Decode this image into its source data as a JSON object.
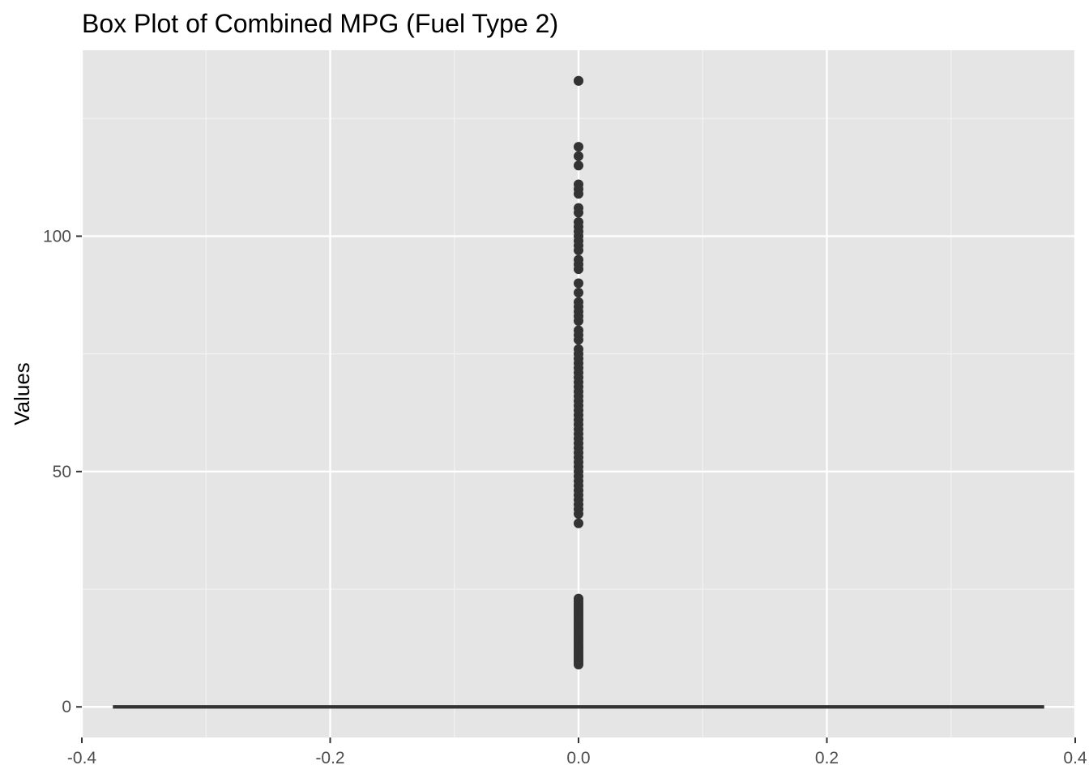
{
  "chart_data": {
    "type": "box",
    "title": "Box Plot of Combined MPG (Fuel Type 2)",
    "xlabel": "",
    "ylabel": "Values",
    "xlim": [
      -0.4,
      0.4
    ],
    "ylim": [
      -6.5,
      139.5
    ],
    "x_ticks": [
      -0.4,
      -0.2,
      0.0,
      0.2,
      0.4
    ],
    "x_tick_labels": [
      "-0.4",
      "-0.2",
      "0.0",
      "0.2",
      "0.4"
    ],
    "y_ticks": [
      0,
      50,
      100
    ],
    "y_tick_labels": [
      "0",
      "50",
      "100"
    ],
    "grid": true,
    "box": {
      "x": 0,
      "width": 0.75,
      "min": 0,
      "q1": 0,
      "median": 0,
      "q3": 0,
      "max": 0
    },
    "outliers": [
      133,
      133,
      119,
      117,
      115,
      111,
      110,
      109,
      106,
      105,
      103,
      102,
      101,
      100,
      99,
      98,
      97,
      95,
      94,
      93,
      90,
      88,
      86,
      85,
      84,
      83,
      82,
      80,
      79,
      78,
      76,
      75,
      74,
      73,
      72,
      71,
      70,
      69,
      68,
      67,
      66,
      65,
      64,
      63,
      62,
      61,
      60,
      59,
      58,
      57,
      56,
      55,
      54,
      53,
      52,
      51,
      50,
      49,
      48,
      47,
      46,
      45,
      44,
      43,
      42,
      41,
      39,
      23,
      22.5,
      22,
      21.5,
      21,
      20.5,
      20,
      19.5,
      19,
      18.5,
      18,
      17.5,
      17,
      16.5,
      16,
      15.5,
      15,
      14.5,
      14,
      13.5,
      13,
      12.5,
      12,
      11.5,
      11,
      10.5,
      10,
      9.5,
      9
    ]
  }
}
